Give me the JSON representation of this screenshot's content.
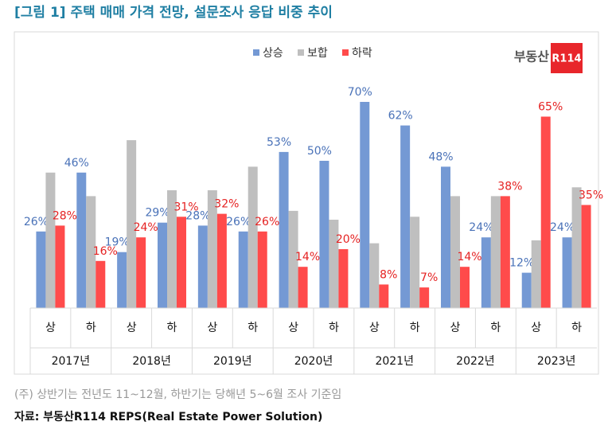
{
  "chart_data": {
    "type": "bar",
    "title": "[그림 1] 주택 매매 가격 전망, 설문조사 응답 비중 추이",
    "logo": {
      "text": "부동산",
      "badge": "R114"
    },
    "categories": [
      "상",
      "하",
      "상",
      "하",
      "상",
      "하",
      "상",
      "하",
      "상",
      "하",
      "상",
      "하",
      "상",
      "하"
    ],
    "groups": [
      "2017년",
      "2018년",
      "2019년",
      "2020년",
      "2021년",
      "2022년",
      "2023년"
    ],
    "series": [
      {
        "name": "상승",
        "color": "#7499d4",
        "values": [
          26,
          46,
          19,
          29,
          28,
          26,
          53,
          50,
          70,
          62,
          48,
          24,
          12,
          24
        ],
        "value_labels": [
          "26%",
          "46%",
          "19%",
          "29%",
          "28%",
          "26%",
          "53%",
          "50%",
          "70%",
          "62%",
          "48%",
          "24%",
          "12%",
          "24%"
        ]
      },
      {
        "name": "보합",
        "color": "#bfbfbf",
        "values": [
          46,
          38,
          57,
          40,
          40,
          48,
          33,
          30,
          22,
          31,
          38,
          38,
          23,
          41
        ]
      },
      {
        "name": "하락",
        "color": "#ff4b4b",
        "values": [
          28,
          16,
          24,
          31,
          32,
          26,
          14,
          20,
          8,
          7,
          14,
          38,
          65,
          35
        ],
        "value_labels": [
          "28%",
          "16%",
          "24%",
          "31%",
          "32%",
          "26%",
          "14%",
          "20%",
          "8%",
          "7%",
          "14%",
          "38%",
          "65%",
          "35%"
        ]
      }
    ],
    "note": "(주) 상반기는 전년도 11~12월, 하반기는 당해년 5~6월 조사 기준임",
    "source": "자료: 부동산R114 REPS(Real Estate Power Solution)"
  }
}
